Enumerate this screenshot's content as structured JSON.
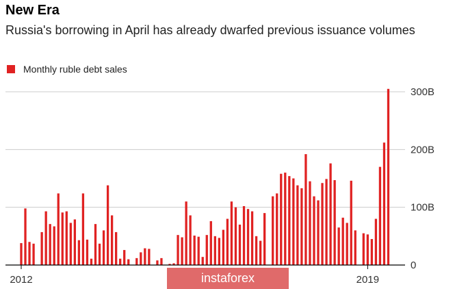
{
  "title": "New Era",
  "subtitle": "Russia's borrowing in April has already dwarfed previous issuance volumes",
  "watermark": "instaforex",
  "colors": {
    "bar": "#e02222",
    "grid": "#cccccc",
    "axis": "#000000"
  },
  "chart_data": {
    "type": "bar",
    "title": "New Era",
    "subtitle": "Russia's borrowing in April has already dwarfed previous issuance volumes",
    "legend": [
      "Monthly ruble debt sales"
    ],
    "legend_placement": "top-left",
    "grid": true,
    "ylim": [
      0,
      300
    ],
    "yticks": [
      0,
      100,
      200,
      300
    ],
    "ytick_labels": [
      "0",
      "100B",
      "200B",
      "300B"
    ],
    "xtick_labels": [
      "2012",
      "2019"
    ],
    "xlim": [
      2012,
      2019.3333
    ],
    "series": [
      {
        "name": "Monthly ruble debt sales",
        "x_start": 2012,
        "x_step_months": 1,
        "values": [
          38,
          98,
          40,
          37,
          0,
          57,
          93,
          71,
          67,
          124,
          91,
          93,
          73,
          79,
          43,
          124,
          44,
          11,
          71,
          37,
          60,
          138,
          86,
          57,
          11,
          26,
          10,
          0,
          12,
          22,
          29,
          28,
          0,
          8,
          12,
          0,
          2,
          3,
          52,
          48,
          110,
          86,
          51,
          49,
          14,
          52,
          76,
          50,
          47,
          61,
          80,
          110,
          100,
          70,
          102,
          97,
          93,
          50,
          42,
          90,
          0,
          119,
          124,
          158,
          160,
          154,
          150,
          138,
          133,
          192,
          145,
          119,
          112,
          142,
          149,
          176,
          147,
          65,
          82,
          73,
          146,
          60,
          0,
          55,
          53,
          45,
          80,
          170,
          212,
          305
        ]
      }
    ]
  }
}
